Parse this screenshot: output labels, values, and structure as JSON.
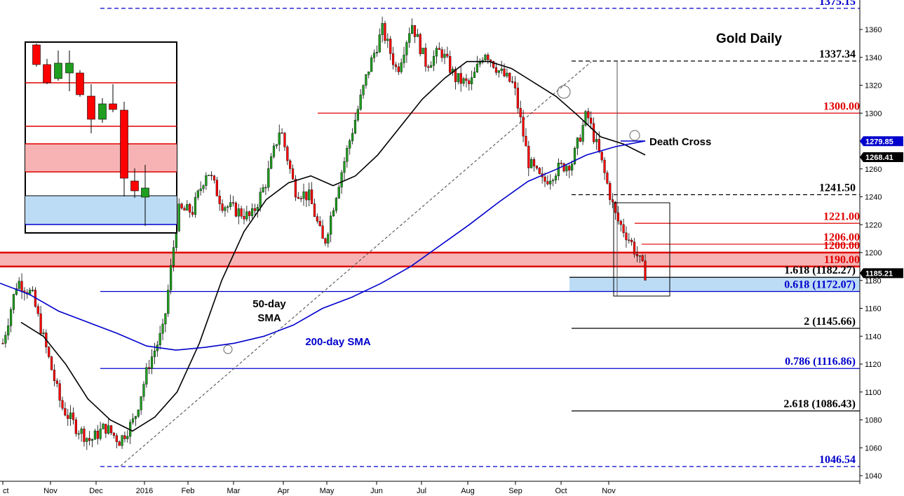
{
  "chart_data": {
    "type": "candlestick",
    "title": "Gold Daily",
    "ylim": [
      1040,
      1380
    ],
    "y_ticks": [
      1040,
      1060,
      1080,
      1100,
      1120,
      1140,
      1160,
      1180,
      1200,
      1220,
      1240,
      1260,
      1280,
      1300,
      1320,
      1340,
      1360
    ],
    "x_labels": [
      "ct",
      "Nov",
      "Dec",
      "2016",
      "Feb",
      "Mar",
      "Apr",
      "May",
      "Jun",
      "Jul",
      "Aug",
      "Sep",
      "Oct",
      "Nov"
    ],
    "colors": {
      "up": "#1f9e1f",
      "down": "#ff0000",
      "sma200": "#0000cc",
      "sma50": "#000000",
      "red_level": "#e00000",
      "blue_level": "#0000cc"
    },
    "price_path": [
      [
        0,
        1135
      ],
      [
        1,
        1180
      ],
      [
        2,
        1170
      ],
      [
        3,
        1130
      ],
      [
        4,
        1090
      ],
      [
        5,
        1075
      ],
      [
        6,
        1065
      ],
      [
        7,
        1075
      ],
      [
        8,
        1065
      ],
      [
        9,
        1080
      ],
      [
        10,
        1120
      ],
      [
        11,
        1145
      ],
      [
        12,
        1230
      ],
      [
        13,
        1230
      ],
      [
        14,
        1260
      ],
      [
        15,
        1235
      ],
      [
        16,
        1230
      ],
      [
        17,
        1225
      ],
      [
        18,
        1250
      ],
      [
        19,
        1290
      ],
      [
        20,
        1245
      ],
      [
        21,
        1240
      ],
      [
        22,
        1205
      ],
      [
        23,
        1250
      ],
      [
        24,
        1290
      ],
      [
        25,
        1330
      ],
      [
        26,
        1360
      ],
      [
        27,
        1330
      ],
      [
        28,
        1365
      ],
      [
        29,
        1335
      ],
      [
        30,
        1345
      ],
      [
        31,
        1325
      ],
      [
        32,
        1320
      ],
      [
        33,
        1345
      ],
      [
        34,
        1330
      ],
      [
        35,
        1320
      ],
      [
        36,
        1265
      ],
      [
        37,
        1250
      ],
      [
        38,
        1260
      ],
      [
        39,
        1265
      ],
      [
        40,
        1300
      ],
      [
        41,
        1265
      ],
      [
        42,
        1225
      ],
      [
        43,
        1208
      ],
      [
        44,
        1185
      ]
    ],
    "series": [
      {
        "name": "50-day SMA",
        "values": [
          1150,
          1140,
          1120,
          1095,
          1080,
          1072,
          1082,
          1100,
          1135,
          1180,
          1215,
          1238,
          1250,
          1255,
          1248,
          1255,
          1270,
          1290,
          1310,
          1325,
          1337,
          1337,
          1332,
          1322,
          1312,
          1298,
          1283,
          1278,
          1270
        ]
      },
      {
        "name": "200-day SMA",
        "values": [
          1178,
          1170,
          1158,
          1150,
          1142,
          1133,
          1130,
          1132,
          1135,
          1140,
          1148,
          1160,
          1168,
          1178,
          1190,
          1205,
          1220,
          1236,
          1251,
          1260,
          1270,
          1276,
          1280
        ]
      }
    ],
    "levels": [
      {
        "label": "1375.15",
        "value": 1375.15,
        "color": "blue",
        "style": "dashed"
      },
      {
        "label": "1337.34",
        "value": 1337.34,
        "color": "black",
        "style": "dashed"
      },
      {
        "label": "1300.00",
        "value": 1300.0,
        "color": "red",
        "style": "solid"
      },
      {
        "label": "1241.50",
        "value": 1241.5,
        "color": "black",
        "style": "dashed"
      },
      {
        "label": "1221.00",
        "value": 1221.0,
        "color": "red",
        "style": "solid"
      },
      {
        "label": "1206.00",
        "value": 1206.0,
        "color": "red",
        "style": "solid"
      },
      {
        "label": "1200.00",
        "value": 1200.0,
        "color": "red",
        "style": "solid"
      },
      {
        "label": "1190.00",
        "value": 1190.0,
        "color": "red",
        "style": "solid"
      },
      {
        "label": "1.618 (1182.27)",
        "value": 1182.27,
        "color": "black",
        "style": "solid"
      },
      {
        "label": "0.618 (1172.07)",
        "value": 1172.07,
        "color": "blue",
        "style": "solid"
      },
      {
        "label": "2 (1145.66)",
        "value": 1145.66,
        "color": "black",
        "style": "solid"
      },
      {
        "label": "0.786 (1116.86)",
        "value": 1116.86,
        "color": "blue",
        "style": "solid"
      },
      {
        "label": "2.618 (1086.43)",
        "value": 1086.43,
        "color": "black",
        "style": "solid"
      },
      {
        "label": "1046.54",
        "value": 1046.54,
        "color": "blue",
        "style": "dashed"
      }
    ],
    "zones": [
      {
        "from": 1190,
        "to": 1200,
        "color": "red"
      },
      {
        "from": 1172.07,
        "to": 1182.27,
        "color": "blue"
      }
    ],
    "price_badges": [
      {
        "label": "1279.85",
        "value": 1279.85,
        "color": "blue"
      },
      {
        "label": "1268.41",
        "value": 1268.41,
        "color": "black"
      },
      {
        "label": "1185.21",
        "value": 1185.21,
        "color": "black"
      }
    ],
    "annotations": {
      "death_cross": "Death Cross",
      "sma50_line1": "50-day",
      "sma50_line2": "SMA",
      "sma200": "200-day SMA"
    }
  }
}
